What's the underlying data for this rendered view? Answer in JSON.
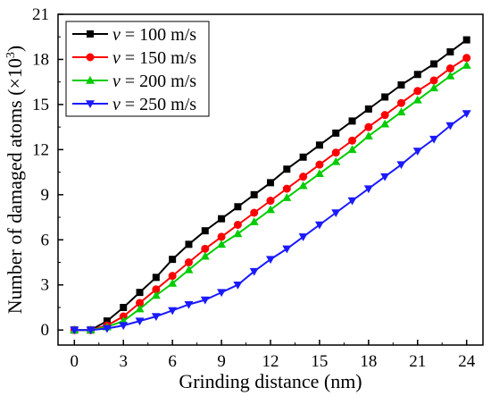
{
  "chart_data": {
    "type": "line",
    "xlabel": "Grinding distance (nm)",
    "ylabel": {
      "main": "Number of damaged atoms (×10",
      "sup": "3",
      "close": ")"
    },
    "xlim": [
      -1,
      25
    ],
    "ylim": [
      -1,
      21
    ],
    "xticks": [
      0,
      3,
      6,
      9,
      12,
      15,
      18,
      21,
      24
    ],
    "yticks": [
      0,
      3,
      6,
      9,
      12,
      15,
      18,
      21
    ],
    "grid": false,
    "legend_position": "top-left",
    "x": [
      0,
      1,
      2,
      3,
      4,
      5,
      6,
      7,
      8,
      9,
      10,
      11,
      12,
      13,
      14,
      15,
      16,
      17,
      18,
      19,
      20,
      21,
      22,
      23,
      24
    ],
    "series": [
      {
        "name_var": "v",
        "name_rest": " = 100 m/s",
        "color": "#000000",
        "marker": "square",
        "values": [
          0,
          0,
          0.6,
          1.5,
          2.5,
          3.5,
          4.7,
          5.7,
          6.6,
          7.4,
          8.2,
          9.0,
          9.8,
          10.7,
          11.5,
          12.3,
          13.1,
          13.9,
          14.7,
          15.5,
          16.3,
          17.0,
          17.7,
          18.5,
          19.3
        ]
      },
      {
        "name_var": "v",
        "name_rest": " = 150 m/s",
        "color": "#ff0000",
        "marker": "circle",
        "values": [
          0,
          0,
          0.3,
          0.9,
          1.8,
          2.7,
          3.6,
          4.5,
          5.4,
          6.2,
          7.0,
          7.8,
          8.6,
          9.4,
          10.2,
          11.0,
          11.8,
          12.6,
          13.5,
          14.3,
          15.1,
          15.9,
          16.6,
          17.4,
          18.1
        ]
      },
      {
        "name_var": "v",
        "name_rest": " = 200 m/s",
        "color": "#00cc00",
        "marker": "triangle-up",
        "values": [
          0,
          0,
          0.2,
          0.6,
          1.4,
          2.3,
          3.1,
          4.0,
          4.9,
          5.7,
          6.4,
          7.2,
          8.0,
          8.8,
          9.6,
          10.4,
          11.2,
          12.0,
          12.9,
          13.7,
          14.5,
          15.3,
          16.1,
          16.9,
          17.6
        ]
      },
      {
        "name_var": "v",
        "name_rest": " = 250 m/s",
        "color": "#1a1aff",
        "marker": "triangle-down",
        "values": [
          0,
          0,
          0.1,
          0.3,
          0.6,
          0.9,
          1.3,
          1.7,
          2.0,
          2.5,
          3.0,
          3.9,
          4.7,
          5.4,
          6.2,
          7.0,
          7.8,
          8.6,
          9.4,
          10.2,
          11.0,
          11.9,
          12.7,
          13.6,
          14.4
        ]
      }
    ]
  }
}
